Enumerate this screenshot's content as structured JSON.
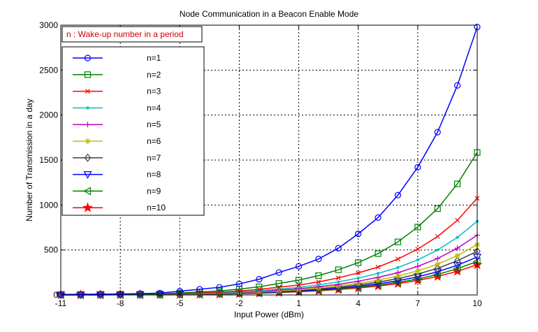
{
  "chart_data": {
    "type": "line",
    "title": "Node Communication in a Beacon Enable Mode",
    "xlabel": "Input Power (dBm)",
    "ylabel": "Number of Transmission  in a day",
    "annotation": "n : Wake-up number in a period",
    "xlim": [
      -11,
      10
    ],
    "ylim": [
      0,
      3000
    ],
    "xticks": [
      -11,
      -8,
      -5,
      -2,
      1,
      4,
      7,
      10
    ],
    "yticks": [
      0,
      500,
      1000,
      1500,
      2000,
      2500,
      3000
    ],
    "grid": true,
    "legend_position": "upper-left",
    "x": [
      -11,
      -10,
      -9,
      -8,
      -7,
      -6,
      -5,
      -4,
      -3,
      -2,
      -1,
      0,
      1,
      2,
      3,
      4,
      5,
      6,
      7,
      8,
      9,
      10
    ],
    "series": [
      {
        "name": "n=1",
        "color": "#0000ff",
        "marker": "circle",
        "values": [
          6,
          7,
          9,
          11,
          15,
          20,
          42,
          63,
          85,
          123,
          175,
          250,
          318,
          400,
          520,
          680,
          860,
          1110,
          1420,
          1810,
          2330,
          2980
        ]
      },
      {
        "name": "n=2",
        "color": "#008000",
        "marker": "square",
        "values": [
          3,
          4,
          5,
          6,
          8,
          11,
          22,
          33,
          45,
          65,
          90,
          128,
          165,
          215,
          280,
          360,
          460,
          590,
          755,
          960,
          1235,
          1585
        ]
      },
      {
        "name": "n=3",
        "color": "#ff0000",
        "marker": "x",
        "values": [
          2,
          3,
          4,
          5,
          6,
          8,
          15,
          22,
          30,
          44,
          62,
          86,
          110,
          145,
          190,
          245,
          310,
          400,
          510,
          650,
          830,
          1075
        ]
      },
      {
        "name": "n=4",
        "color": "#00bfbf",
        "marker": "dot",
        "values": [
          2,
          2,
          3,
          4,
          5,
          6,
          11,
          17,
          23,
          33,
          47,
          66,
          85,
          112,
          145,
          188,
          240,
          305,
          390,
          500,
          640,
          820
        ]
      },
      {
        "name": "n=5",
        "color": "#bf00bf",
        "marker": "plus",
        "values": [
          1,
          2,
          2,
          3,
          4,
          5,
          9,
          14,
          19,
          27,
          38,
          54,
          69,
          91,
          118,
          153,
          195,
          248,
          318,
          405,
          520,
          665
        ]
      },
      {
        "name": "n=6",
        "color": "#bfbf00",
        "marker": "star",
        "values": [
          1,
          2,
          2,
          3,
          3,
          4,
          8,
          12,
          16,
          23,
          32,
          46,
          58,
          77,
          100,
          129,
          165,
          210,
          268,
          342,
          438,
          560
        ]
      },
      {
        "name": "n=7",
        "color": "#404040",
        "marker": "diamond",
        "values": [
          1,
          1,
          2,
          2,
          3,
          4,
          7,
          10,
          14,
          20,
          28,
          40,
          51,
          67,
          87,
          112,
          143,
          182,
          232,
          296,
          380,
          485
        ]
      },
      {
        "name": "n=8",
        "color": "#0000ff",
        "marker": "triangle-down",
        "values": [
          1,
          1,
          2,
          2,
          3,
          3,
          6,
          9,
          12,
          17,
          24,
          34,
          44,
          58,
          75,
          97,
          124,
          158,
          202,
          258,
          330,
          422
        ]
      },
      {
        "name": "n=9",
        "color": "#008000",
        "marker": "triangle-left",
        "values": [
          1,
          1,
          1,
          2,
          2,
          3,
          5,
          8,
          11,
          15,
          22,
          30,
          39,
          51,
          66,
          86,
          110,
          140,
          178,
          228,
          292,
          373
        ]
      },
      {
        "name": "n=10",
        "color": "#ff0000",
        "marker": "pentagram",
        "values": [
          1,
          1,
          1,
          2,
          2,
          3,
          5,
          7,
          10,
          14,
          19,
          27,
          35,
          46,
          60,
          77,
          99,
          126,
          161,
          206,
          263,
          336
        ]
      }
    ]
  }
}
